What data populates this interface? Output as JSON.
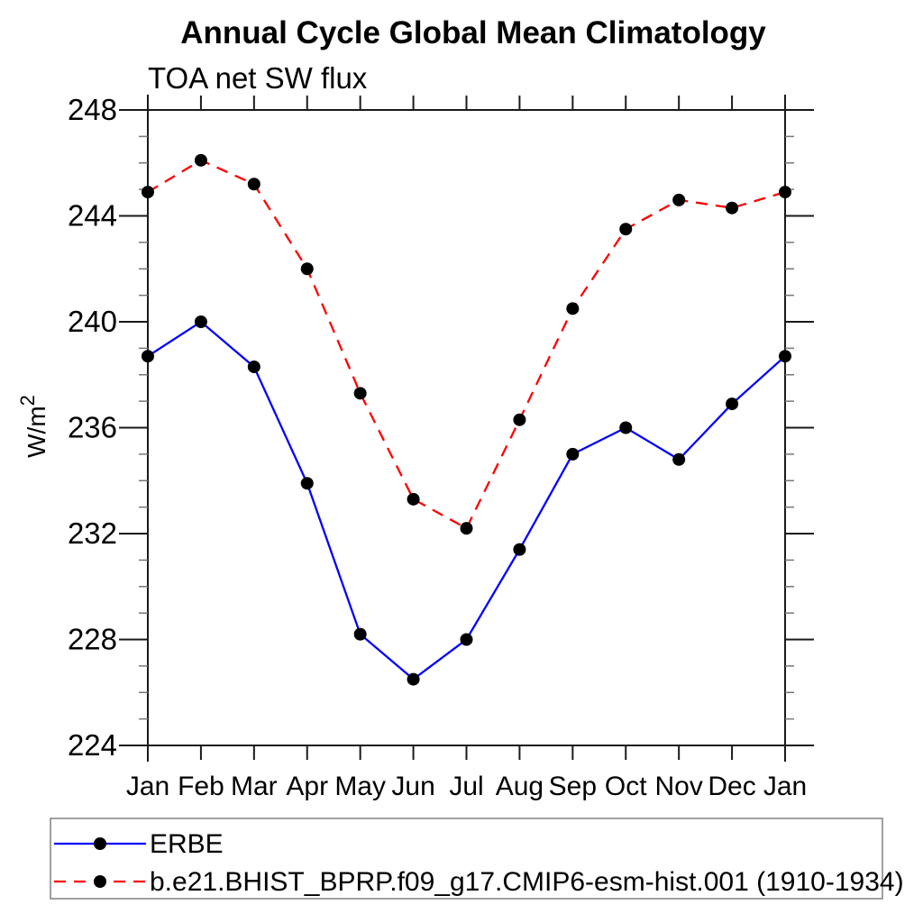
{
  "chart_data": {
    "type": "line",
    "title": "Annual Cycle Global Mean Climatology",
    "subtitle": "TOA net SW flux",
    "ylabel": "W/m²",
    "ylabel_base": "W/m",
    "ylabel_exp": "2",
    "categories": [
      "Jan",
      "Feb",
      "Mar",
      "Apr",
      "May",
      "Jun",
      "Jul",
      "Aug",
      "Sep",
      "Oct",
      "Nov",
      "Dec",
      "Jan"
    ],
    "series": [
      {
        "name": "ERBE",
        "color": "#0000ff",
        "line_style": "solid",
        "marker": "filled-circle",
        "marker_color": "#000000",
        "values": [
          238.7,
          240.0,
          238.3,
          233.9,
          228.2,
          226.5,
          228.0,
          231.4,
          235.0,
          236.0,
          234.8,
          236.9,
          238.7
        ]
      },
      {
        "name": "b.e21.BHIST_BPRP.f09_g17.CMIP6-esm-hist.001 (1910-1934)",
        "color": "#ff0000",
        "line_style": "dashed",
        "marker": "filled-circle",
        "marker_color": "#000000",
        "values": [
          244.9,
          246.1,
          245.2,
          242.0,
          237.3,
          233.3,
          232.2,
          236.3,
          240.5,
          243.5,
          244.6,
          244.3,
          244.9
        ]
      }
    ],
    "ylim": [
      224,
      248
    ],
    "ytick_major_step": 4,
    "ytick_minor_step": 1,
    "grid": false,
    "legend_position": "bottom-left"
  }
}
